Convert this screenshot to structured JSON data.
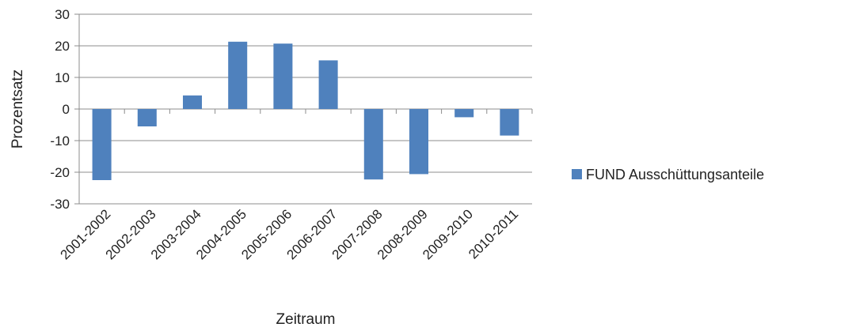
{
  "chart_data": {
    "type": "bar",
    "categories": [
      "2001-2002",
      "2002-2003",
      "2003-2004",
      "2004-2005",
      "2005-2006",
      "2006-2007",
      "2007-2008",
      "2008-2009",
      "2009-2010",
      "2010-2011"
    ],
    "series": [
      {
        "name": "FUND Ausschüttungsanteile",
        "values": [
          -22.5,
          -5.5,
          4.3,
          21.3,
          20.7,
          15.4,
          -22.3,
          -20.6,
          -2.6,
          -8.4
        ],
        "color": "#4f81bd"
      }
    ],
    "title": "",
    "xlabel": "Zeitraum",
    "ylabel": "Prozentsatz",
    "ylim": [
      -30,
      30
    ],
    "yticks": [
      -30,
      -20,
      -10,
      0,
      10,
      20,
      30
    ],
    "grid": true,
    "legend_position": "right"
  }
}
